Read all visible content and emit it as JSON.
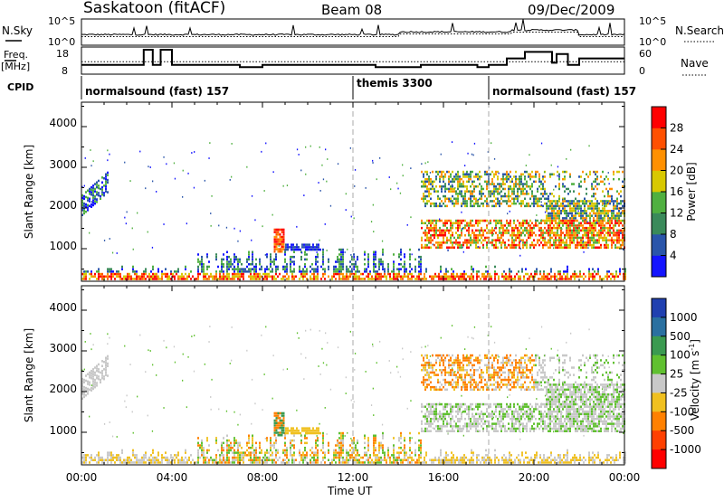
{
  "header": {
    "title": "Saskatoon (fitACF)",
    "beam": "Beam 08",
    "date": "09/Dec/2009"
  },
  "chart_data": [
    {
      "type": "line",
      "panel": "noise",
      "left_label": "N.Sky",
      "right_label": "N.Search",
      "yticks_left": [
        "10^5",
        "10^0"
      ],
      "yticks_right": [
        "10^5",
        "10^0"
      ]
    },
    {
      "type": "line",
      "panel": "frequency",
      "left_label_line1": "Freq.",
      "left_label_line2": "[MHz]",
      "right_label": "Nave",
      "yticks_left": [
        "18",
        "8"
      ],
      "yticks_right": [
        "60",
        "0"
      ],
      "freq_steps": [
        {
          "t": 0.0,
          "v": 11
        },
        {
          "t": 2.75,
          "v": 18
        },
        {
          "t": 3.15,
          "v": 11
        },
        {
          "t": 3.5,
          "v": 18
        },
        {
          "t": 4.0,
          "v": 11
        },
        {
          "t": 7.0,
          "v": 10
        },
        {
          "t": 8.0,
          "v": 11
        },
        {
          "t": 13.0,
          "v": 10
        },
        {
          "t": 15.0,
          "v": 11
        },
        {
          "t": 17.5,
          "v": 10
        },
        {
          "t": 18.0,
          "v": 11
        },
        {
          "t": 18.8,
          "v": 14
        },
        {
          "t": 19.6,
          "v": 17
        },
        {
          "t": 20.8,
          "v": 12
        },
        {
          "t": 21.0,
          "v": 16
        },
        {
          "t": 21.5,
          "v": 11
        },
        {
          "t": 22.0,
          "v": 14
        },
        {
          "t": 24.0,
          "v": 14
        }
      ],
      "nave_level": 12.5
    },
    {
      "type": "table",
      "panel": "cpid",
      "label": "CPID",
      "segments": [
        {
          "text": "normalsound (fast) 157",
          "start": 0
        },
        {
          "text": "themis 3300",
          "start": 12
        },
        {
          "text": "normalsound (fast) 157",
          "start": 18
        }
      ]
    },
    {
      "type": "heatmap",
      "panel": "power",
      "ylabel": "Slant Range [km]",
      "yticks": [
        "1000",
        "2000",
        "3000",
        "4000"
      ],
      "ylim": [
        200,
        4600
      ],
      "colorbar_label": "Power [dB]",
      "colorbar_ticks": [
        "4",
        "8",
        "12",
        "16",
        "20",
        "24",
        "28"
      ],
      "colors": [
        "#1414ff",
        "#2a55aa",
        "#3a8a5a",
        "#50b040",
        "#d8c800",
        "#ff9000",
        "#ff5000",
        "#ff0000"
      ]
    },
    {
      "type": "heatmap",
      "panel": "velocity",
      "ylabel": "Slant Range [km]",
      "yticks": [
        "1000",
        "2000",
        "3000",
        "4000"
      ],
      "ylim": [
        200,
        4600
      ],
      "xlabel": "Time UT",
      "xticks": [
        "00:00",
        "04:00",
        "08:00",
        "12:00",
        "16:00",
        "20:00",
        "00:00"
      ],
      "colorbar_label": "Velocity [m s",
      "colorbar_label_sup": "-1",
      "colorbar_label_end": "]",
      "colorbar_ticks": [
        "1000",
        "500",
        "100",
        "25",
        "-25",
        "-100",
        "-500",
        "-1000"
      ],
      "colors": [
        "#2040b0",
        "#3a9a50",
        "#60c030",
        "#c8c8c8",
        "#c8c8c8",
        "#f0c020",
        "#ff8000",
        "#ff4000",
        "#ff0000"
      ]
    }
  ]
}
